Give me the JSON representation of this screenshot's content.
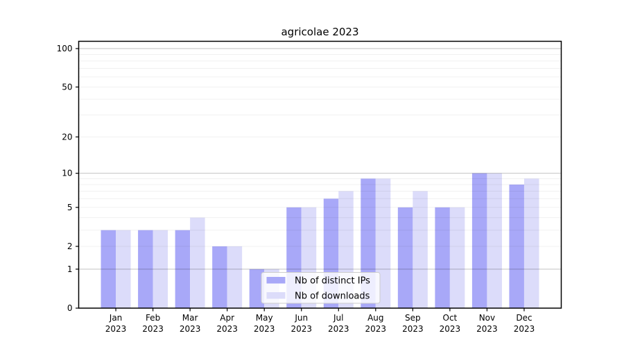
{
  "chart_data": {
    "type": "bar",
    "title": "agricolae 2023",
    "categories": [
      "Jan",
      "Feb",
      "Mar",
      "Apr",
      "May",
      "Jun",
      "Jul",
      "Aug",
      "Sep",
      "Oct",
      "Nov",
      "Dec"
    ],
    "category_sublabel": "2023",
    "series": [
      {
        "name": "Nb of distinct IPs",
        "color": "#a8a8f8",
        "values": [
          3,
          3,
          3,
          2,
          1,
          5,
          6,
          9,
          5,
          5,
          10,
          8
        ]
      },
      {
        "name": "Nb of downloads",
        "color": "#dcdcfa",
        "values": [
          3,
          3,
          4,
          2,
          1,
          5,
          7,
          9,
          7,
          5,
          10,
          9
        ]
      }
    ],
    "xlabel": "",
    "ylabel": "",
    "y_scale": "log10(1+x)",
    "y_ticks": [
      0,
      1,
      2,
      5,
      10,
      20,
      50,
      100
    ],
    "ylim": [
      0,
      115
    ],
    "grid": {
      "major_at": [
        1,
        10,
        100
      ],
      "minor_per_decade": [
        2,
        3,
        4,
        5,
        6,
        7,
        8,
        9
      ],
      "shown": true
    },
    "legend": {
      "position": "lower-center",
      "entries": [
        "Nb of distinct IPs",
        "Nb of downloads"
      ]
    }
  }
}
